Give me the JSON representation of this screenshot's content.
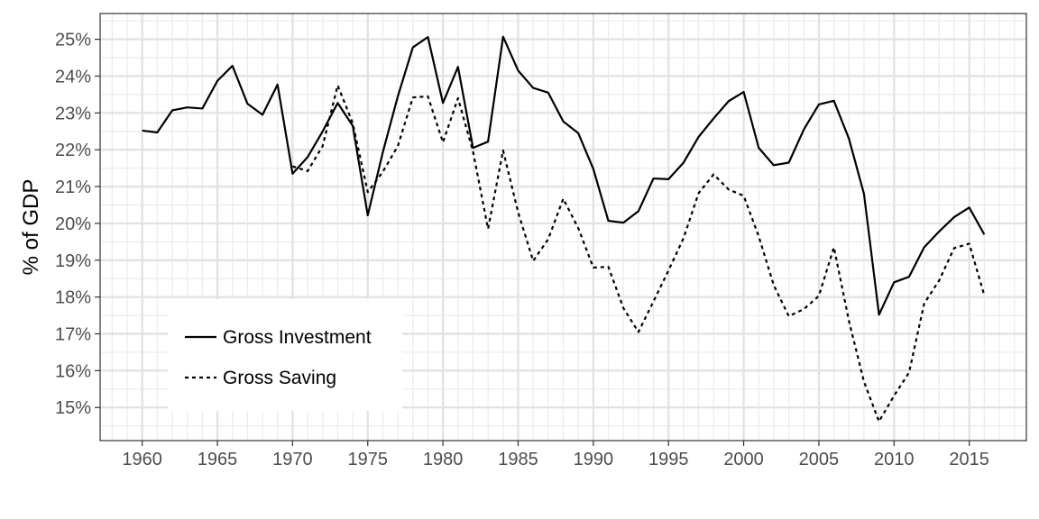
{
  "chart_data": {
    "type": "line",
    "title": "",
    "xlabel": "",
    "ylabel": "% of GDP",
    "xlim": [
      1957.3,
      1958.1
    ],
    "xrange": [
      1957.2,
      2018.8
    ],
    "ylim": [
      14.1,
      25.7
    ],
    "x_ticks": [
      1960,
      1965,
      1970,
      1975,
      1980,
      1985,
      1990,
      1995,
      2000,
      2005,
      2010,
      2015
    ],
    "x_tick_labels": [
      "1960",
      "1965",
      "1970",
      "1975",
      "1980",
      "1985",
      "1990",
      "1995",
      "2000",
      "2005",
      "2010",
      "2015"
    ],
    "y_ticks": [
      15,
      16,
      17,
      18,
      19,
      20,
      21,
      22,
      23,
      24,
      25
    ],
    "y_tick_labels": [
      "15%",
      "16%",
      "17%",
      "18%",
      "19%",
      "20%",
      "21%",
      "22%",
      "23%",
      "24%",
      "25%"
    ],
    "grid": true,
    "legend_position": "bottom-left",
    "series": [
      {
        "name": "Gross Investment",
        "style": "solid",
        "color": "#000000",
        "x": [
          1960,
          1961,
          1962,
          1963,
          1964,
          1965,
          1966,
          1967,
          1968,
          1969,
          1970,
          1971,
          1972,
          1973,
          1974,
          1975,
          1976,
          1977,
          1978,
          1979,
          1980,
          1981,
          1982,
          1983,
          1984,
          1985,
          1986,
          1987,
          1988,
          1989,
          1990,
          1991,
          1992,
          1993,
          1994,
          1995,
          1996,
          1997,
          1998,
          1999,
          2000,
          2001,
          2002,
          2003,
          2004,
          2005,
          2006,
          2007,
          2008,
          2009,
          2010,
          2011,
          2012,
          2013,
          2014,
          2015,
          2016
        ],
        "values": [
          22.52,
          22.47,
          23.07,
          23.15,
          23.12,
          23.87,
          24.28,
          23.25,
          22.95,
          23.77,
          21.35,
          21.8,
          22.5,
          23.27,
          22.65,
          20.22,
          21.93,
          23.45,
          24.78,
          25.06,
          23.27,
          24.25,
          22.05,
          22.22,
          25.07,
          24.15,
          23.68,
          23.55,
          22.77,
          22.45,
          21.48,
          20.07,
          20.02,
          20.33,
          21.22,
          21.2,
          21.65,
          22.35,
          22.85,
          23.32,
          23.57,
          22.05,
          21.58,
          21.65,
          22.55,
          23.23,
          23.33,
          22.3,
          20.8,
          17.52,
          18.4,
          18.55,
          19.35,
          19.78,
          20.17,
          20.43,
          19.7
        ]
      },
      {
        "name": "Gross Saving",
        "style": "dashed",
        "color": "#000000",
        "x": [
          1970,
          1971,
          1972,
          1973,
          1974,
          1975,
          1976,
          1977,
          1978,
          1979,
          1980,
          1981,
          1982,
          1983,
          1984,
          1985,
          1986,
          1987,
          1988,
          1989,
          1990,
          1991,
          1992,
          1993,
          1994,
          1995,
          1996,
          1997,
          1998,
          1999,
          2000,
          2001,
          2002,
          2003,
          2004,
          2005,
          2006,
          2007,
          2008,
          2009,
          2010,
          2011,
          2012,
          2013,
          2014,
          2015,
          2016
        ],
        "values": [
          21.55,
          21.42,
          22.1,
          23.75,
          22.72,
          20.85,
          21.4,
          22.1,
          23.42,
          23.45,
          22.2,
          23.4,
          21.95,
          19.85,
          21.98,
          20.3,
          18.98,
          19.57,
          20.67,
          19.87,
          18.8,
          18.82,
          17.7,
          17.05,
          17.88,
          18.72,
          19.6,
          20.82,
          21.33,
          20.92,
          20.75,
          19.65,
          18.32,
          17.48,
          17.67,
          18.03,
          19.35,
          17.35,
          15.7,
          14.62,
          15.32,
          15.95,
          17.82,
          18.45,
          19.33,
          19.45,
          18.05
        ]
      }
    ]
  }
}
